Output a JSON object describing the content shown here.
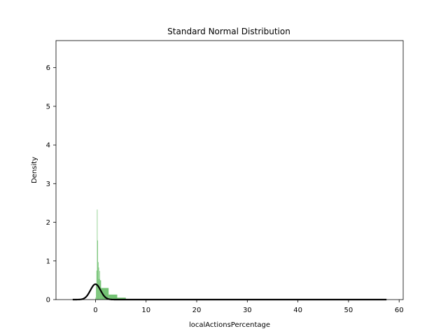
{
  "chart_data": {
    "type": "bar",
    "title": "Standard Normal Distribution",
    "xlabel": "localActionsPercentage",
    "ylabel": "Density",
    "xlim": [
      -7.8,
      60.8
    ],
    "ylim": [
      0,
      6.7
    ],
    "xticks": [
      0,
      10,
      20,
      30,
      40,
      50,
      60
    ],
    "yticks": [
      0,
      1,
      2,
      3,
      4,
      5,
      6
    ],
    "grid": false,
    "histogram": {
      "color": "#5cb85c",
      "bins": [
        {
          "x0": 0.0,
          "x1": 0.1,
          "y": 0.05
        },
        {
          "x0": 0.1,
          "x1": 0.2,
          "y": 0.4
        },
        {
          "x0": 0.2,
          "x1": 0.3,
          "y": 0.75
        },
        {
          "x0": 0.3,
          "x1": 0.4,
          "y": 2.33
        },
        {
          "x0": 0.4,
          "x1": 0.5,
          "y": 1.53
        },
        {
          "x0": 0.5,
          "x1": 0.6,
          "y": 0.97
        },
        {
          "x0": 0.6,
          "x1": 0.7,
          "y": 0.83
        },
        {
          "x0": 0.7,
          "x1": 0.8,
          "y": 0.53
        },
        {
          "x0": 0.8,
          "x1": 0.9,
          "y": 0.74
        },
        {
          "x0": 0.9,
          "x1": 1.1,
          "y": 0.5
        },
        {
          "x0": 1.1,
          "x1": 2.6,
          "y": 0.3
        },
        {
          "x0": 2.6,
          "x1": 4.3,
          "y": 0.13
        },
        {
          "x0": 4.3,
          "x1": 6.0,
          "y": 0.05
        },
        {
          "x0": 6.0,
          "x1": 9.0,
          "y": 0.01
        }
      ]
    },
    "curve": {
      "type": "normal-pdf",
      "mean": 0,
      "std": 1,
      "x_range": [
        -4.5,
        57.5
      ],
      "color": "#000000"
    }
  }
}
